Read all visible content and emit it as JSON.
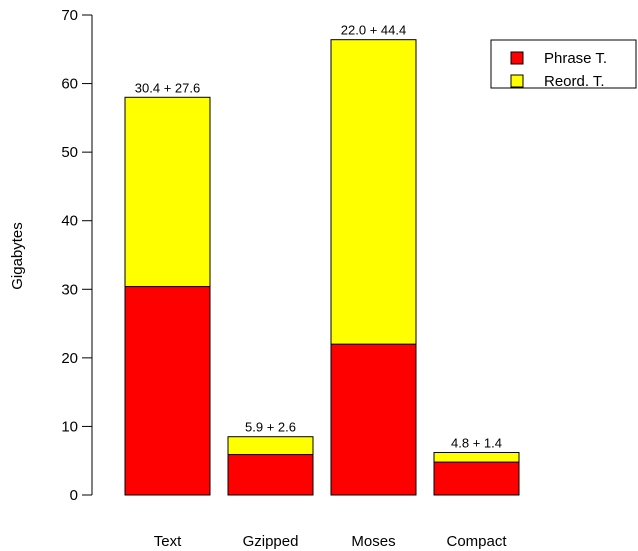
{
  "chart_data": {
    "type": "bar",
    "stacked": true,
    "categories": [
      "Text",
      "Gzipped",
      "Moses",
      "Compact"
    ],
    "series": [
      {
        "name": "Phrase T.",
        "values": [
          30.4,
          5.9,
          22.0,
          4.8
        ],
        "color": "#ff0000"
      },
      {
        "name": "Reord. T.",
        "values": [
          27.6,
          2.6,
          44.4,
          1.4
        ],
        "color": "#ffff00"
      }
    ],
    "bar_labels": [
      "30.4 + 27.6",
      "5.9 + 2.6",
      "22.0 + 44.4",
      "4.8 + 1.4"
    ],
    "title": "",
    "xlabel": "",
    "ylabel": "Gigabytes",
    "ylim": [
      0,
      70
    ],
    "yticks": [
      0,
      10,
      20,
      30,
      40,
      50,
      60,
      70
    ],
    "grid": false,
    "legend_position": "top-right"
  }
}
